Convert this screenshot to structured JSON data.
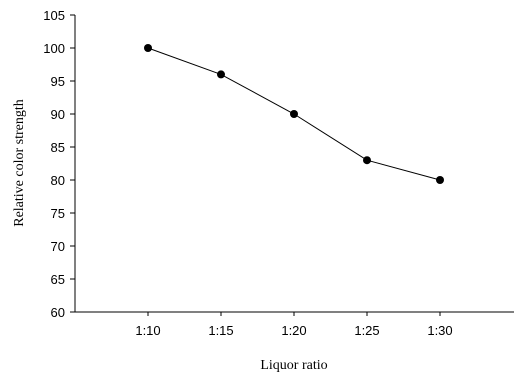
{
  "chart_data": {
    "type": "line",
    "title": "",
    "xlabel": "Liquor ratio",
    "ylabel": "Relative color strength",
    "categories": [
      "1:10",
      "1:15",
      "1:20",
      "1:25",
      "1:30"
    ],
    "series": [
      {
        "values": [
          100,
          96,
          90,
          83,
          80
        ]
      }
    ],
    "ylim": [
      60,
      105
    ],
    "yticks": [
      60,
      65,
      70,
      75,
      80,
      85,
      90,
      95,
      100,
      105
    ],
    "grid": false,
    "legend": "none",
    "colors": {
      "line": "#000000",
      "marker": "#000000",
      "axis": "#000000"
    }
  }
}
